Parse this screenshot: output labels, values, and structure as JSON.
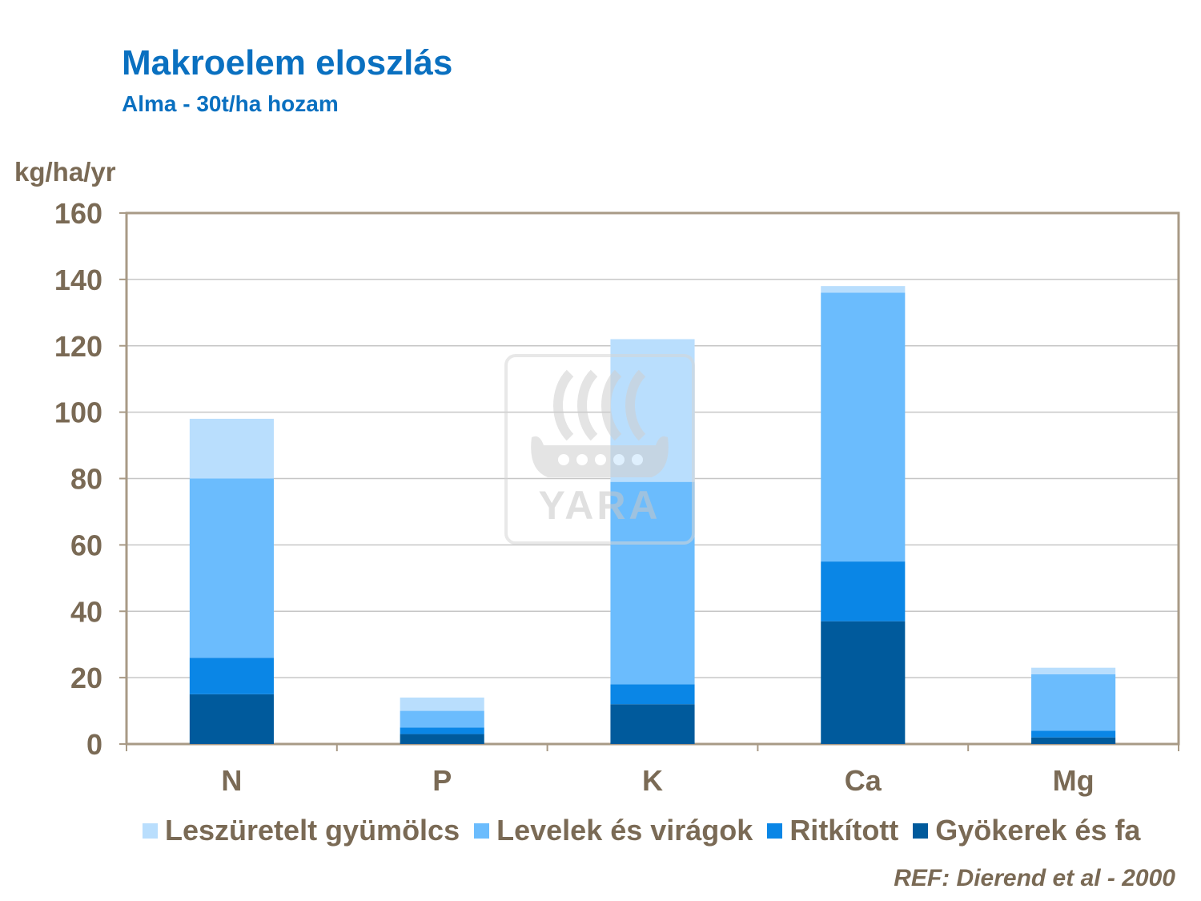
{
  "header": {
    "title": "Makroelem eloszlás",
    "subtitle": "Alma  - 30t/ha hozam",
    "y_unit": "kg/ha/yr"
  },
  "watermark": {
    "text": "YARA",
    "icon": "yara-viking-ship-logo"
  },
  "reference": "REF: Dierend et al - 2000",
  "colors": {
    "axis_text": "#7a6a55",
    "title": "#0a70c0"
  },
  "chart_data": {
    "type": "bar",
    "stacked": true,
    "categories": [
      "N",
      "P",
      "K",
      "Ca",
      "Mg"
    ],
    "series": [
      {
        "name": "Gyökerek és fa",
        "color": "#005a9c",
        "values": [
          15,
          3,
          12,
          37,
          2
        ]
      },
      {
        "name": "Ritkított",
        "color": "#0a86e6",
        "values": [
          11,
          2,
          6,
          18,
          2
        ]
      },
      {
        "name": "Levelek és virágok",
        "color": "#6bbcfd",
        "values": [
          54,
          5,
          61,
          81,
          17
        ]
      },
      {
        "name": "Leszüretelt gyümölcs",
        "color": "#b9defd",
        "values": [
          18,
          4,
          43,
          2,
          2
        ]
      }
    ],
    "legend_order": [
      "Leszüretelt gyümölcs",
      "Levelek és virágok",
      "Ritkított",
      "Gyökerek és fa"
    ],
    "ylim": [
      0,
      160
    ],
    "yticks": [
      0,
      20,
      40,
      60,
      80,
      100,
      120,
      140,
      160
    ],
    "ylabel": "kg/ha/yr",
    "grid": true,
    "legend_position": "bottom"
  }
}
